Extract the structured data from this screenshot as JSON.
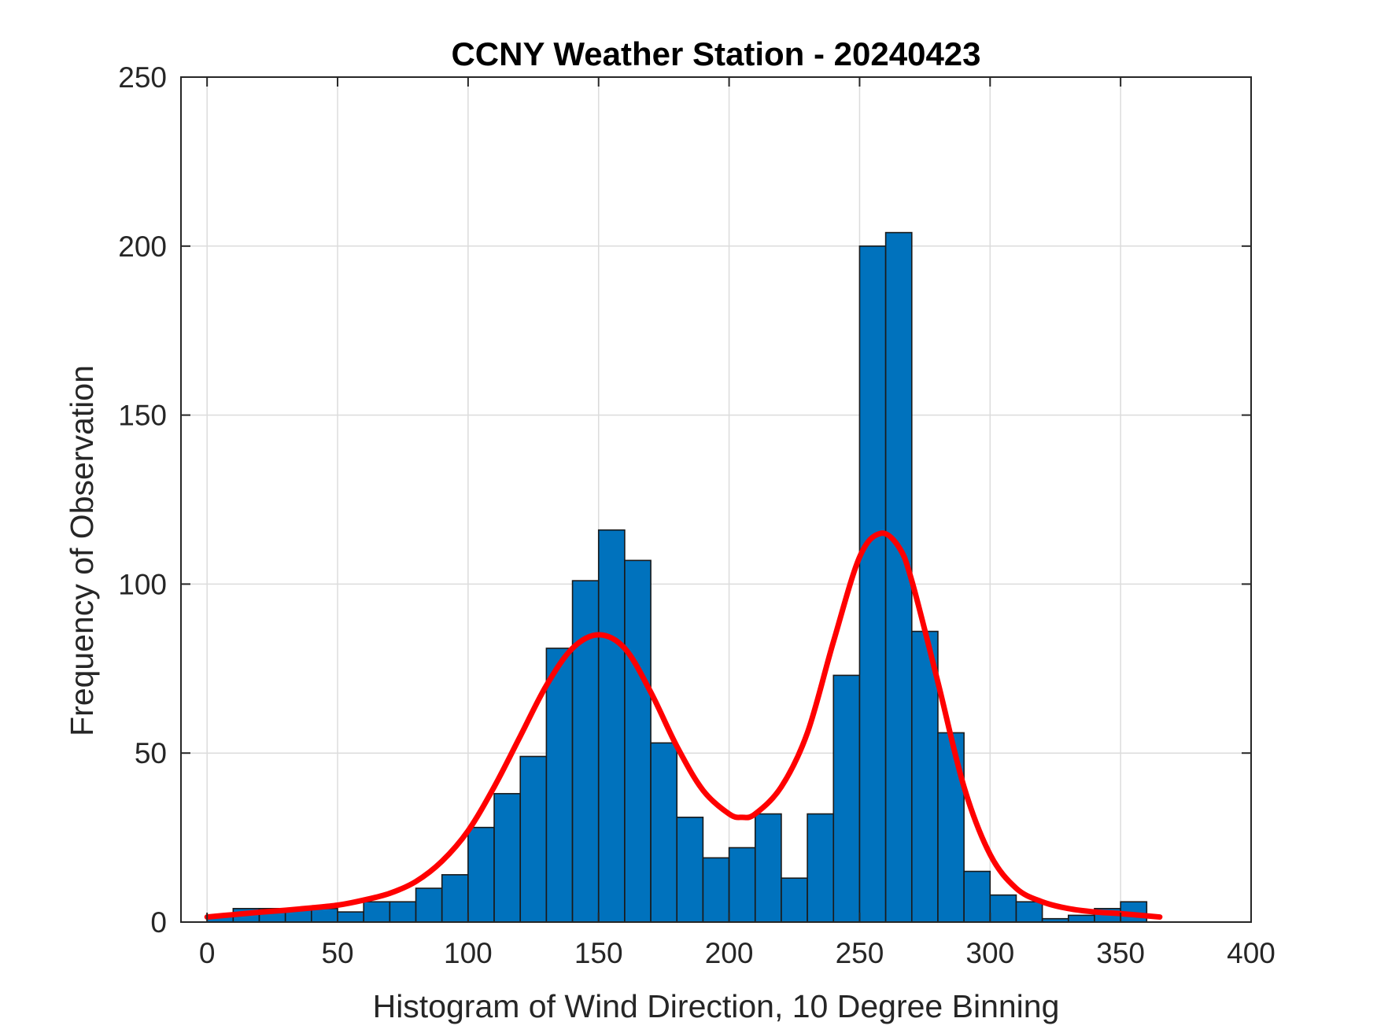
{
  "chart_data": {
    "type": "bar",
    "title": "CCNY Weather Station - 20240423",
    "xlabel": "Histogram of Wind Direction, 10 Degree Binning",
    "ylabel": "Frequency of Observation",
    "xlim": [
      -10,
      400
    ],
    "ylim": [
      0,
      250
    ],
    "xticks": [
      0,
      50,
      100,
      150,
      200,
      250,
      300,
      350,
      400
    ],
    "yticks": [
      0,
      50,
      100,
      150,
      200,
      250
    ],
    "grid": true,
    "bin_width": 10,
    "bin_edges": [
      0,
      10,
      20,
      30,
      40,
      50,
      60,
      70,
      80,
      90,
      100,
      110,
      120,
      130,
      140,
      150,
      160,
      170,
      180,
      190,
      200,
      210,
      220,
      230,
      240,
      250,
      260,
      270,
      280,
      290,
      300,
      310,
      320,
      330,
      340,
      350,
      360
    ],
    "values": [
      2,
      4,
      4,
      4,
      4,
      3,
      6,
      6,
      10,
      14,
      28,
      38,
      49,
      81,
      101,
      116,
      107,
      53,
      31,
      19,
      22,
      32,
      13,
      32,
      73,
      200,
      204,
      86,
      56,
      15,
      8,
      6,
      1,
      2,
      4,
      6
    ],
    "fit_curve": {
      "name": "fitted distribution",
      "x": [
        0,
        10,
        20,
        30,
        40,
        50,
        60,
        70,
        80,
        90,
        100,
        110,
        120,
        130,
        140,
        150,
        160,
        170,
        180,
        190,
        200,
        205,
        210,
        220,
        230,
        240,
        250,
        258,
        265,
        270,
        280,
        290,
        300,
        310,
        320,
        330,
        340,
        350,
        365
      ],
      "y": [
        1.5,
        2.2,
        2.9,
        3.5,
        4.2,
        5.0,
        6.5,
        8.5,
        12,
        18,
        27,
        40,
        55,
        70,
        81,
        85,
        81,
        68,
        52,
        39,
        32,
        31,
        32,
        40,
        56,
        83,
        108,
        115,
        111,
        101,
        71,
        40,
        20,
        10,
        6,
        4,
        3,
        2.5,
        1.5
      ]
    },
    "bar_color": "#0072BD",
    "fit_color": "#FF0000"
  }
}
